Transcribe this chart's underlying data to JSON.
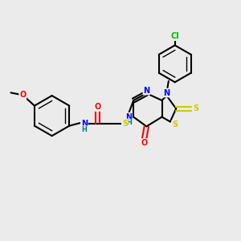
{
  "background_color": "#ebebeb",
  "bond_color": "#000000",
  "atom_colors": {
    "N": "#0000ff",
    "O": "#ff0000",
    "S": "#cccc00",
    "Cl": "#00bb00",
    "C": "#000000",
    "H": "#008080"
  },
  "figsize": [
    3.0,
    3.0
  ],
  "dpi": 100
}
